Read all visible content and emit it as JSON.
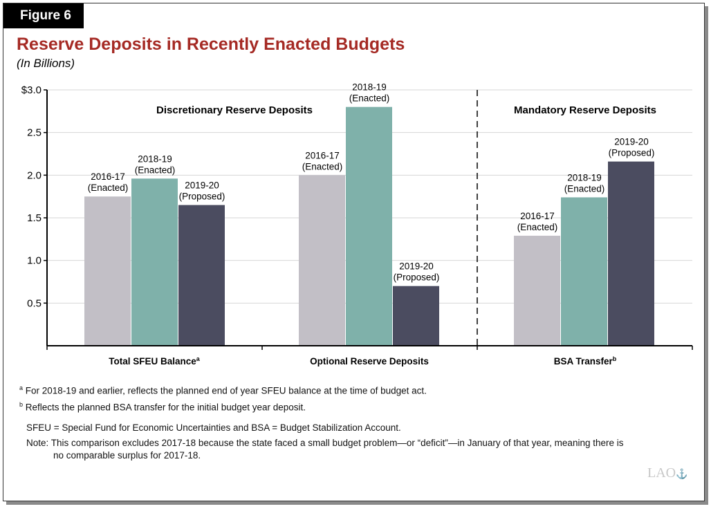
{
  "figure_label": "Figure 6",
  "chart_data": {
    "type": "bar",
    "title": "Reserve Deposits in Recently Enacted Budgets",
    "subtitle": "(In Billions)",
    "categories": [
      "Total SFEU Balance",
      "Optional Reserve Deposits",
      "BSA Transfer"
    ],
    "category_superscripts": [
      "a",
      "",
      "b"
    ],
    "sections": [
      "Discretionary Reserve Deposits",
      "Mandatory Reserve Deposits"
    ],
    "series": [
      {
        "name": "2016-17 (Enacted)",
        "line1": "2016-17",
        "line2": "(Enacted)",
        "color": "#c2bfc6",
        "values": [
          1.75,
          2.0,
          1.29
        ]
      },
      {
        "name": "2018-19 (Enacted)",
        "line1": "2018-19",
        "line2": "(Enacted)",
        "color": "#7fb1aa",
        "values": [
          1.96,
          2.8,
          1.74
        ]
      },
      {
        "name": "2019-20 (Proposed)",
        "line1": "2019-20",
        "line2": "(Proposed)",
        "color": "#4b4c60",
        "values": [
          1.65,
          0.7,
          2.16
        ]
      }
    ],
    "yticks": [
      "0.5",
      "1.0",
      "1.5",
      "2.0",
      "2.5",
      "$3.0"
    ],
    "ytick_values": [
      0.5,
      1.0,
      1.5,
      2.0,
      2.5,
      3.0
    ],
    "ylim": [
      0,
      3.0
    ],
    "grid": true
  },
  "footnotes": {
    "a": "For 2018-19 and earlier, reflects the planned end of year SFEU balance at the time of budget act.",
    "b": "Reflects the planned BSA transfer for the initial budget year deposit.",
    "abbrev": "SFEU = Special Fund for Economic Uncertainties and BSA = Budget Stabilization Account.",
    "note_label": "Note:",
    "note": "This comparison excludes 2017-18 because the state faced a small budget problem—or “deficit”—in January of that year, meaning there is",
    "note2": "no comparable surplus for 2017-18."
  },
  "logo": "LAO"
}
